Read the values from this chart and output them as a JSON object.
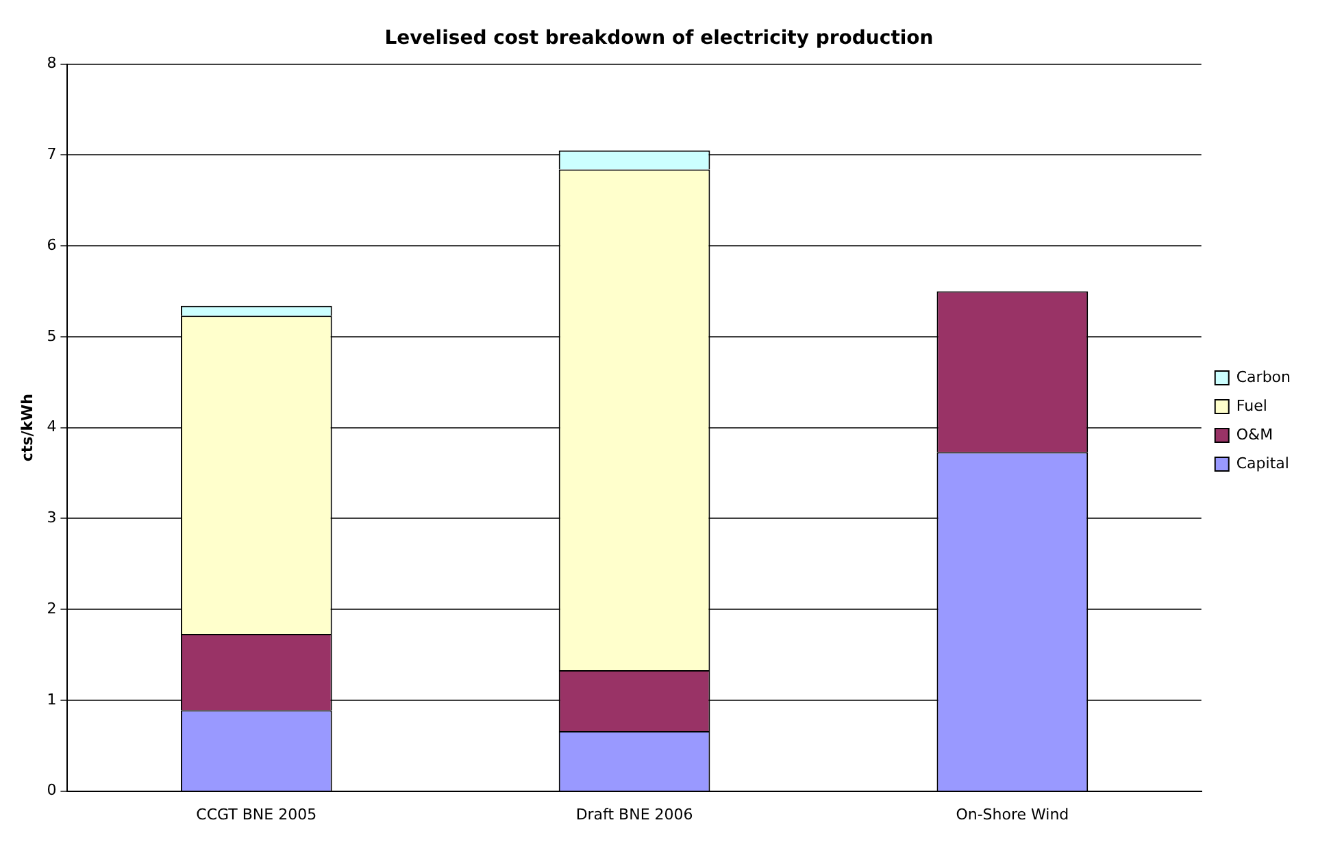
{
  "chart_data": {
    "type": "bar",
    "title": "Levelised cost breakdown of electricity production",
    "ylabel": "cts/kWh",
    "categories": [
      "CCGT BNE 2005",
      "Draft BNE 2006",
      "On-Shore Wind"
    ],
    "stacked": true,
    "series": [
      {
        "name": "Capital",
        "color": "#9999ff",
        "values": [
          0.89,
          0.66,
          3.73
        ]
      },
      {
        "name": "O&M",
        "color": "#993366",
        "values": [
          0.84,
          0.67,
          1.77
        ]
      },
      {
        "name": "Fuel",
        "color": "#ffffcc",
        "values": [
          3.5,
          5.51,
          null
        ]
      },
      {
        "name": "Carbon",
        "color": "#ccffff",
        "values": [
          0.11,
          0.21,
          null
        ]
      }
    ],
    "ylim": [
      0,
      8
    ],
    "yticks": [
      0,
      1,
      2,
      3,
      4,
      5,
      6,
      7,
      8
    ],
    "grid": "y",
    "legend": "right"
  }
}
